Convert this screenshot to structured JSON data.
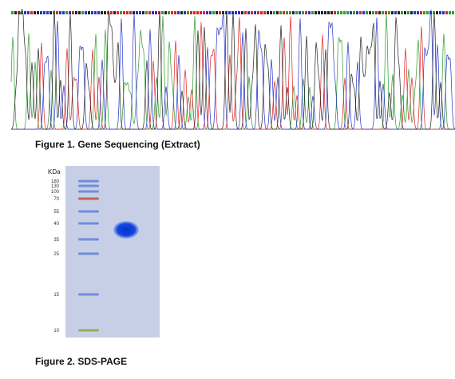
{
  "figure1": {
    "caption": "Figure 1. Gene Sequencing (Extract)"
  },
  "figure2": {
    "caption": "Figure 2. SDS-PAGE",
    "unit_label": "KDa",
    "markers": [
      "180",
      "130",
      "100",
      "70",
      "55",
      "40",
      "35",
      "25",
      "15",
      "10"
    ]
  }
}
